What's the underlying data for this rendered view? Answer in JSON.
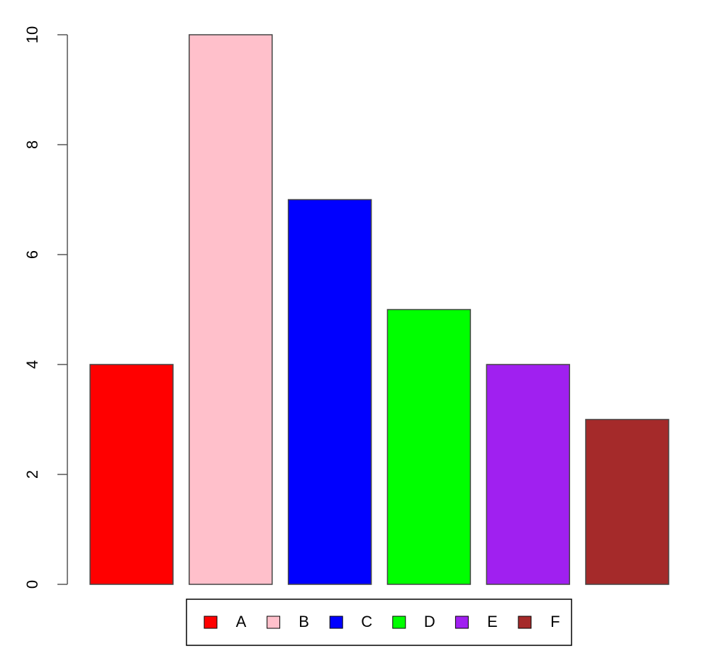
{
  "chart_data": {
    "type": "bar",
    "categories": [
      "A",
      "B",
      "C",
      "D",
      "E",
      "F"
    ],
    "values": [
      4,
      10,
      7,
      5,
      4,
      3
    ],
    "colors": [
      "#ff0000",
      "#ffc0cb",
      "#0000ff",
      "#00ff00",
      "#a020f0",
      "#a52a2a"
    ],
    "ylim": [
      0,
      10
    ],
    "yticks": [
      0,
      2,
      4,
      6,
      8,
      10
    ],
    "legend": "bottom"
  }
}
